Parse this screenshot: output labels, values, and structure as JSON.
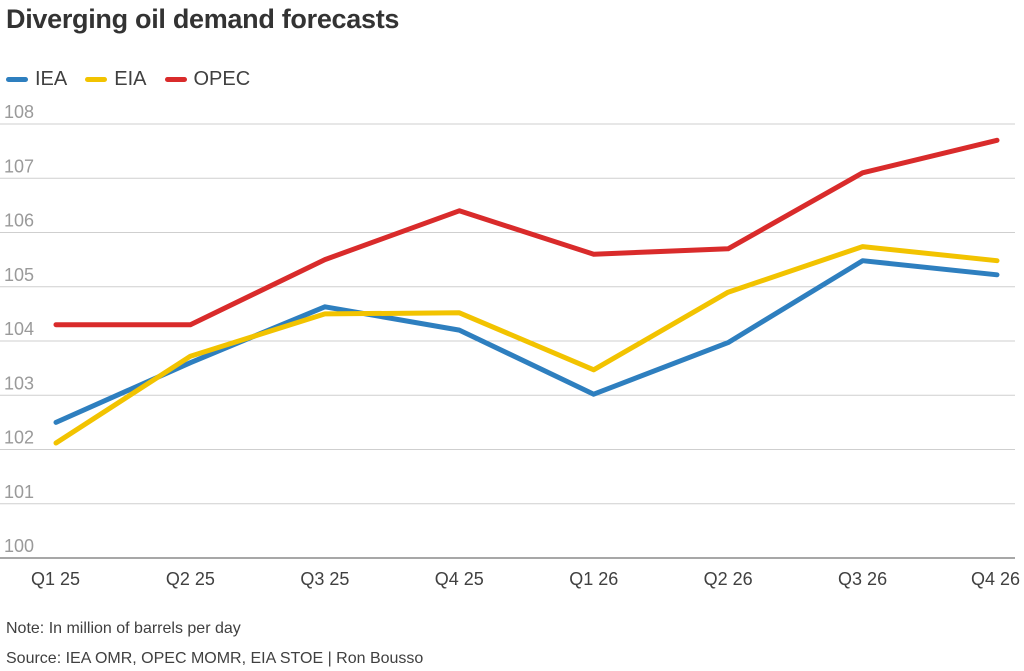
{
  "chart_data": {
    "type": "line",
    "title": "Diverging oil demand forecasts",
    "categories": [
      "Q1 25",
      "Q2 25",
      "Q3 25",
      "Q4 25",
      "Q1 26",
      "Q2 26",
      "Q3 26",
      "Q4 26"
    ],
    "ylim": [
      100,
      108
    ],
    "yticks": [
      100,
      101,
      102,
      103,
      104,
      105,
      106,
      107,
      108
    ],
    "xlabel": "",
    "ylabel": "",
    "grid": true,
    "legend_position": "top-left",
    "series": [
      {
        "name": "IEA",
        "color": "#2e7fbf",
        "values": [
          102.5,
          103.6,
          104.63,
          104.2,
          103.02,
          103.97,
          105.48,
          105.22
        ]
      },
      {
        "name": "EIA",
        "color": "#f2c300",
        "values": [
          102.12,
          103.72,
          104.5,
          104.52,
          103.47,
          104.9,
          105.74,
          105.48
        ]
      },
      {
        "name": "OPEC",
        "color": "#d92b2b",
        "values": [
          104.3,
          104.3,
          105.5,
          106.4,
          105.6,
          105.7,
          107.1,
          107.7
        ]
      }
    ]
  },
  "note": "Note: In million of barrels per day",
  "source": "Source: IEA OMR, OPEC MOMR, EIA STOE | Ron Bousso"
}
